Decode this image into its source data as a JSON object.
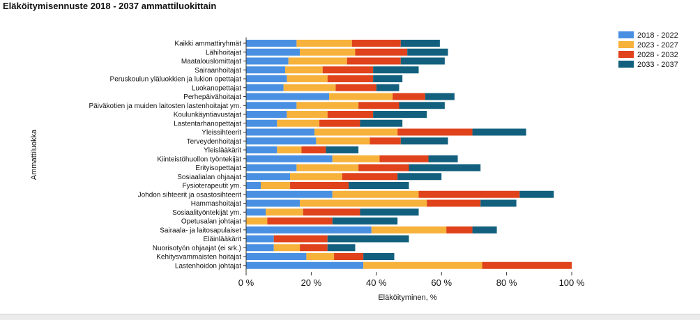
{
  "title": "Eläköitymisennuste 2018 - 2037 ammattiluokittain",
  "chart_data": {
    "type": "bar",
    "orientation": "horizontal",
    "stacked": true,
    "title": "Eläköitymisennuste 2018 - 2037 ammattiluokittain",
    "xlabel": "Eläköityminen, %",
    "ylabel": "Ammattiluokka",
    "xlim": [
      0,
      100
    ],
    "x_ticks": [
      "0 %",
      "20 %",
      "40 %",
      "60 %",
      "80 %",
      "100 %"
    ],
    "legend_position": "top-right",
    "categories": [
      "Kaikki ammattiryhmät",
      "Lähihoitajat",
      "Maatalouslomittajat",
      "Sairaanhoitajat",
      "Peruskoulun yläluokkien ja lukion opettajat",
      "Luokanopettajat",
      "Perhepäivähoitajat",
      "Päiväkotien ja muiden laitosten lastenhoitajat ym.",
      "Koulunkäyntiavustajat",
      "Lastentarhanopettajat",
      "Yleissihteerit",
      "Terveydenhoitajat",
      "Yleislääkärit",
      "Kiinteistöhuollon työntekijät",
      "Erityisopettajat",
      "Sosiaalialan ohjaajat",
      "Fysioterapeutit ym.",
      "Johdon sihteerit ja osastosihteerit",
      "Hammashoitajat",
      "Sosiaalityöntekijät ym.",
      "Opetusalan johtajat",
      "Sairaala- ja laitosapulaiset",
      "Eläinlääkärit",
      "Nuorisotyön ohjaajat (ei srk.)",
      "Kehitysvammaisten hoitajat",
      "Lastenhoidon johtajat"
    ],
    "series": [
      {
        "name": "2018 - 2022",
        "color": "#4a90e2",
        "values": [
          15.5,
          16.5,
          13,
          12,
          12.5,
          11.5,
          25.5,
          15.5,
          12.5,
          9.5,
          21,
          21.5,
          9.5,
          26.5,
          15.5,
          13.5,
          4.5,
          26.5,
          16.5,
          6,
          0,
          38.5,
          8.5,
          8.5,
          18.5,
          36
        ]
      },
      {
        "name": "2023 - 2027",
        "color": "#f7b23b",
        "values": [
          17,
          17,
          18,
          11.5,
          12.5,
          16,
          19.5,
          19,
          12.5,
          13,
          25.5,
          16.5,
          7.5,
          14.5,
          19,
          16,
          9,
          26.5,
          39,
          11.5,
          6.5,
          23,
          0,
          8,
          8.5,
          36.5
        ]
      },
      {
        "name": "2028 - 2032",
        "color": "#e0421b",
        "values": [
          15,
          16,
          16.5,
          15.5,
          14,
          12.5,
          10,
          12.5,
          14,
          12.5,
          23,
          9.5,
          7.5,
          15,
          15.5,
          17,
          18,
          31,
          16.5,
          17.5,
          20,
          8,
          16.5,
          8.5,
          9,
          27.5
        ]
      },
      {
        "name": "2033 - 2037",
        "color": "#12607e",
        "values": [
          12,
          12.5,
          13.5,
          14,
          9,
          7,
          9,
          14,
          16.5,
          13,
          16.5,
          14.5,
          10,
          9,
          22,
          13.5,
          18.5,
          10.5,
          11,
          18,
          20,
          7.5,
          25,
          8.5,
          9.5,
          0
        ]
      }
    ]
  }
}
